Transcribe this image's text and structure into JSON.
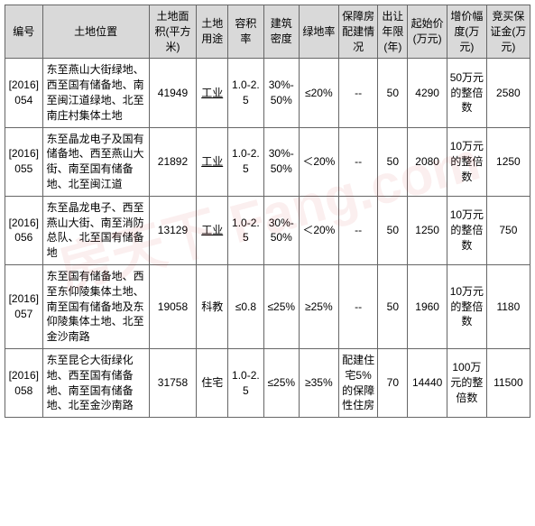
{
  "watermark": "房天下 Fang.com",
  "table": {
    "headers": [
      "编号",
      "土地位置",
      "土地面积(平方米)",
      "土地用途",
      "容积率",
      "建筑密度",
      "绿地率",
      "保障房配建情况",
      "出让年限(年)",
      "起始价(万元)",
      "增价幅度(万元)",
      "竞买保证金(万元)"
    ],
    "rows": [
      {
        "id": "[2016]054",
        "location": "东至燕山大街绿地、西至国有储备地、南至闽江道绿地、北至南庄村集体土地",
        "area": "41949",
        "use": "工业",
        "useUnderline": true,
        "ratio": "1.0-2.5",
        "density": "30%-50%",
        "green": "≤20%",
        "housing": "--",
        "years": "50",
        "price": "4290",
        "increment": "50万元的整倍数",
        "deposit": "2580"
      },
      {
        "id": "[2016]055",
        "location": "东至晶龙电子及国有储备地、西至燕山大街、南至国有储备地、北至闽江道",
        "area": "21892",
        "use": "工业",
        "useUnderline": true,
        "ratio": "1.0-2.5",
        "density": "30%-50%",
        "green": "＜20%",
        "housing": "--",
        "years": "50",
        "price": "2080",
        "increment": "10万元的整倍数",
        "deposit": "1250"
      },
      {
        "id": "[2016]056",
        "location": "东至晶龙电子、西至燕山大街、南至消防总队、北至国有储备地",
        "area": "13129",
        "use": "工业",
        "useUnderline": true,
        "ratio": "1.0-2.5",
        "density": "30%-50%",
        "green": "＜20%",
        "housing": "--",
        "years": "50",
        "price": "1250",
        "increment": "10万元的整倍数",
        "deposit": "750"
      },
      {
        "id": "[2016]057",
        "location": "东至国有储备地、西至东仰陵集体土地、南至国有储备地及东仰陵集体土地、北至金沙南路",
        "area": "19058",
        "use": "科教",
        "useUnderline": false,
        "ratio": "≤0.8",
        "density": "≤25%",
        "green": "≥25%",
        "housing": "--",
        "years": "50",
        "price": "1960",
        "increment": "10万元的整倍数",
        "deposit": "1180"
      },
      {
        "id": "[2016]058",
        "location": "东至昆仑大街绿化地、西至国有储备地、南至国有储备地、北至金沙南路",
        "area": "31758",
        "use": "住宅",
        "useUnderline": false,
        "ratio": "1.0-2.5",
        "density": "≤25%",
        "green": "≥35%",
        "housing": "配建住宅5%的保障性住房",
        "years": "70",
        "price": "14440",
        "increment": "100万元的整倍数",
        "deposit": "11500"
      }
    ]
  },
  "styling": {
    "header_bg": "#d9d9d9",
    "border_color": "#666666",
    "font_size": 12,
    "watermark_color": "rgba(200, 50, 50, 0.08)"
  }
}
